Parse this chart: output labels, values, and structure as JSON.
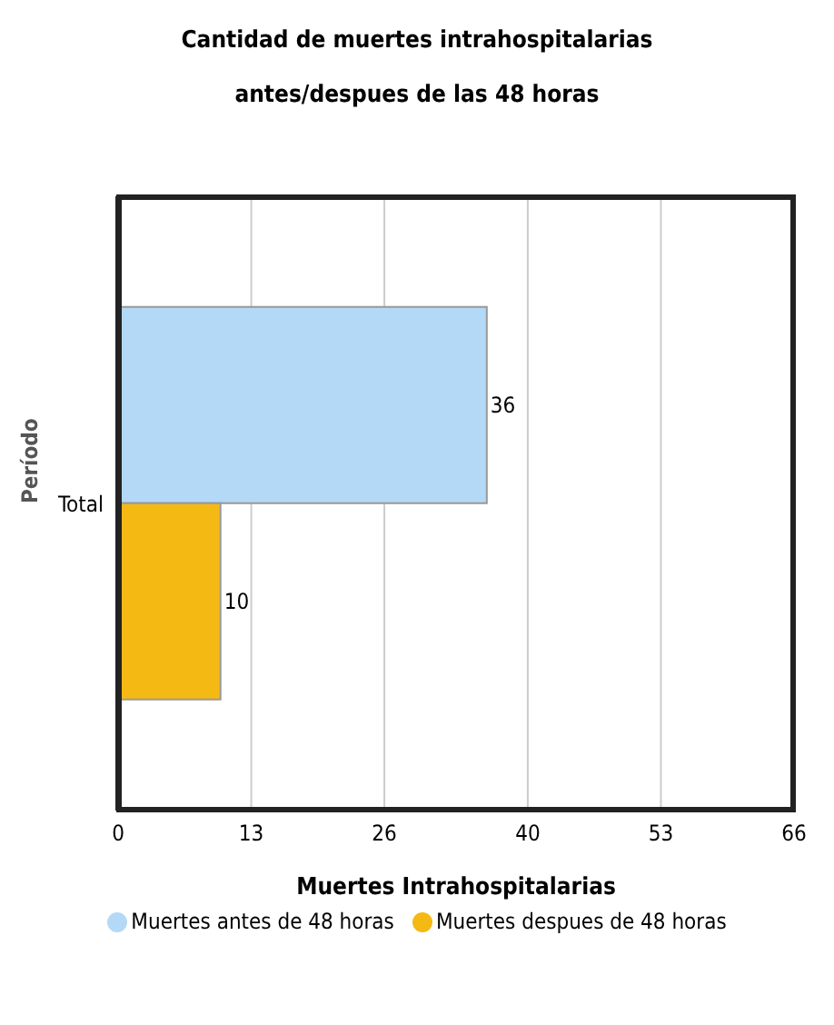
{
  "chart_data": {
    "type": "bar",
    "orientation": "horizontal",
    "title": "Cantidad de muertes intrahospitalarias antes/despues de las 48 horas",
    "xlabel": "Muertes Intrahospitalarias",
    "ylabel": "Período",
    "categories": [
      "Total"
    ],
    "series": [
      {
        "name": "Muertes antes de 48 horas",
        "color": "#b3d9f7",
        "values": [
          36
        ]
      },
      {
        "name": "Muertes despues de 48 horas",
        "color": "#f5b914",
        "values": [
          10
        ]
      }
    ],
    "xlim": [
      0,
      66
    ],
    "xticks": [
      0,
      13,
      26,
      40,
      53,
      66
    ],
    "grid": "x",
    "data_labels": true,
    "legend": "bottom"
  }
}
